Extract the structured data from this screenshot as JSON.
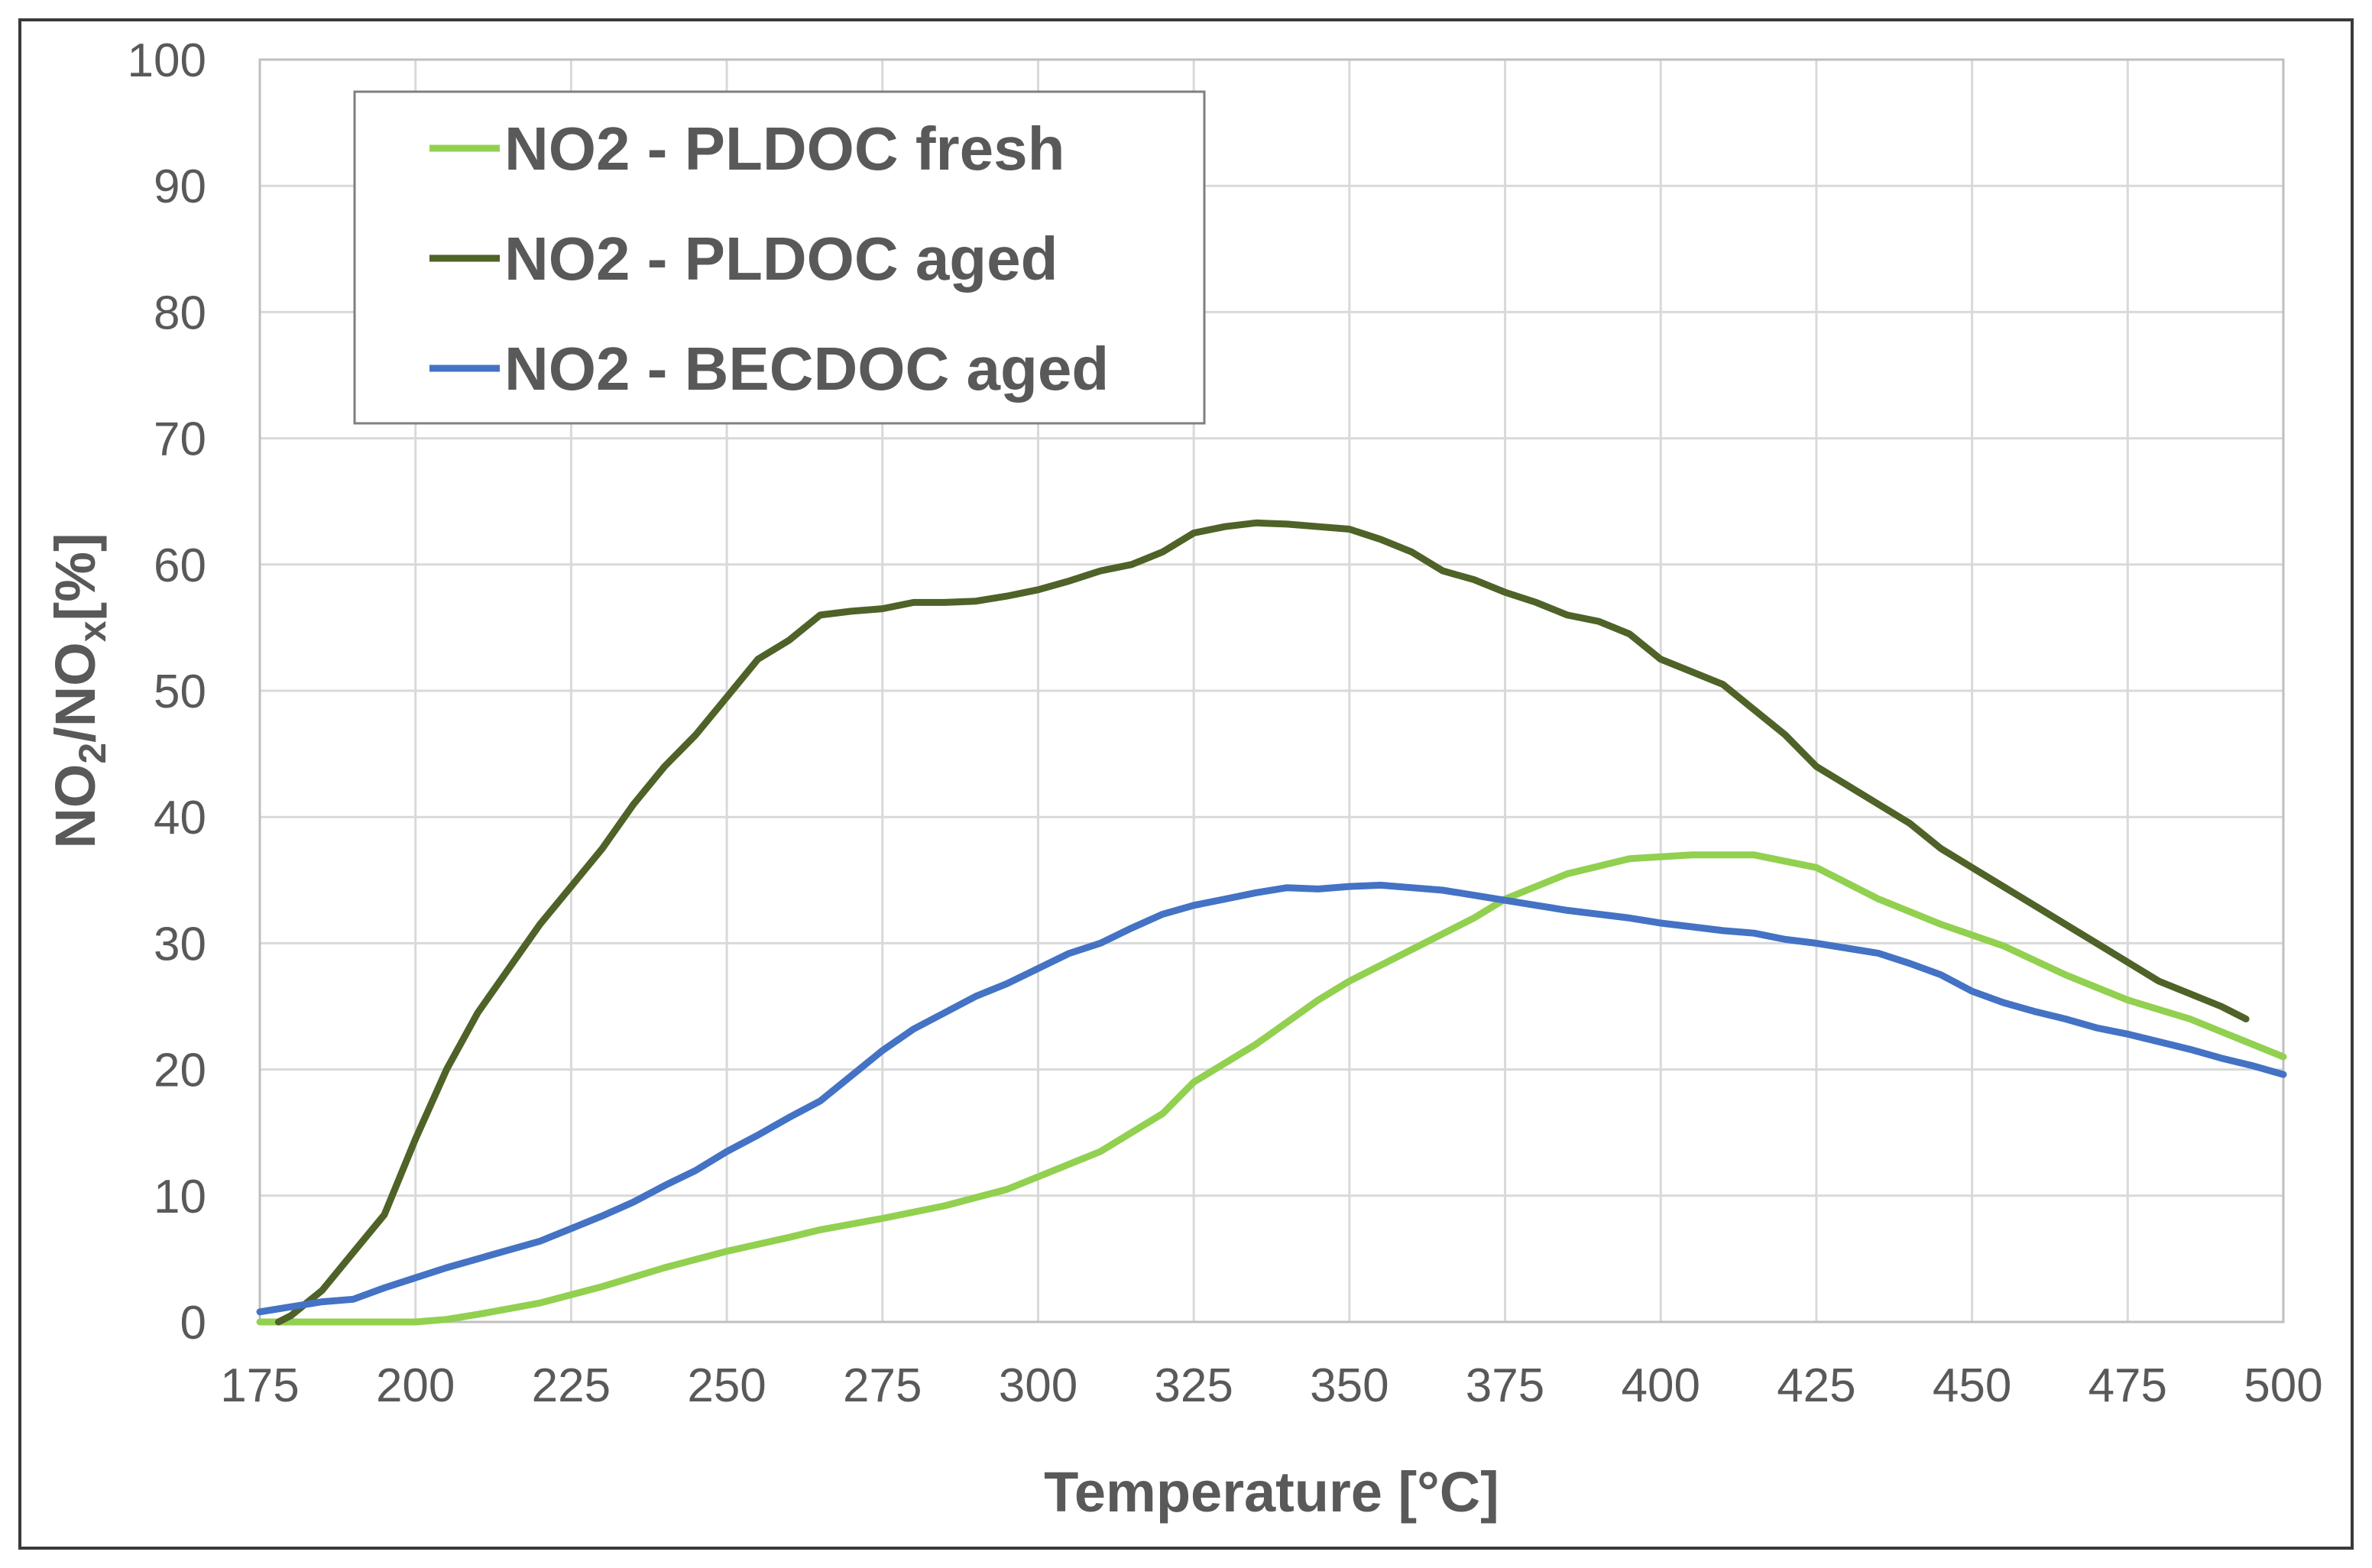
{
  "chart_data": {
    "type": "line",
    "title": "",
    "xlabel": "Temperature [°C]",
    "ylabel_parts": [
      "NO",
      "2",
      "/NO",
      "x",
      "[%]"
    ],
    "xlim": [
      175,
      500
    ],
    "ylim": [
      0,
      100
    ],
    "xticks": [
      175,
      200,
      225,
      250,
      275,
      300,
      325,
      350,
      375,
      400,
      425,
      450,
      475,
      500
    ],
    "yticks": [
      0,
      10,
      20,
      30,
      40,
      50,
      60,
      70,
      80,
      90,
      100
    ],
    "grid": true,
    "legend_position": "top-left",
    "series": [
      {
        "name": "NO2 - PLDOC fresh",
        "color": "#92D050",
        "x": [
          175,
          190,
          200,
          205,
          210,
          220,
          230,
          240,
          250,
          260,
          265,
          275,
          285,
          295,
          300,
          310,
          320,
          325,
          335,
          345,
          350,
          360,
          370,
          375,
          385,
          395,
          405,
          415,
          425,
          435,
          445,
          455,
          465,
          475,
          485,
          495,
          500
        ],
        "y": [
          0,
          0,
          0,
          0.2,
          0.6,
          1.5,
          2.8,
          4.3,
          5.6,
          6.7,
          7.3,
          8.2,
          9.2,
          10.5,
          11.5,
          13.5,
          16.5,
          19,
          22,
          25.5,
          27,
          29.5,
          32,
          33.5,
          35.5,
          36.7,
          37,
          37,
          36,
          33.5,
          31.5,
          29.8,
          27.5,
          25.5,
          24,
          22,
          21
        ]
      },
      {
        "name": "NO2 - PLDOC aged",
        "color": "#4F6228",
        "x": [
          178,
          180,
          185,
          190,
          195,
          200,
          205,
          210,
          215,
          220,
          225,
          230,
          235,
          240,
          245,
          250,
          255,
          260,
          265,
          270,
          275,
          280,
          285,
          290,
          295,
          300,
          305,
          310,
          315,
          320,
          325,
          330,
          335,
          340,
          345,
          350,
          355,
          360,
          365,
          370,
          375,
          380,
          385,
          390,
          395,
          400,
          405,
          410,
          415,
          420,
          425,
          430,
          435,
          440,
          445,
          450,
          455,
          460,
          465,
          470,
          475,
          480,
          485,
          490,
          494
        ],
        "y": [
          0,
          0.5,
          2.5,
          5.5,
          8.5,
          14.5,
          20,
          24.5,
          28,
          31.5,
          34.5,
          37.5,
          41,
          44,
          46.5,
          49.5,
          52.5,
          54,
          56,
          56.3,
          56.5,
          57,
          57,
          57.1,
          57.5,
          58,
          58.7,
          59.5,
          60,
          61,
          62.5,
          63,
          63.3,
          63.2,
          63,
          62.8,
          62,
          61,
          59.5,
          58.8,
          57.8,
          57,
          56,
          55.5,
          54.5,
          52.5,
          51.5,
          50.5,
          48.5,
          46.5,
          44,
          42.5,
          41,
          39.5,
          37.5,
          36,
          34.5,
          33,
          31.5,
          30,
          28.5,
          27,
          26,
          25,
          24
        ]
      },
      {
        "name": "NO2 - BECDOC aged",
        "color": "#4472C4",
        "x": [
          175,
          180,
          185,
          190,
          195,
          200,
          205,
          210,
          215,
          220,
          225,
          230,
          235,
          240,
          245,
          250,
          255,
          260,
          265,
          270,
          275,
          280,
          285,
          290,
          295,
          300,
          305,
          310,
          315,
          320,
          325,
          330,
          335,
          340,
          345,
          350,
          355,
          360,
          365,
          370,
          375,
          380,
          385,
          390,
          395,
          400,
          405,
          410,
          415,
          420,
          425,
          430,
          435,
          440,
          445,
          450,
          455,
          460,
          465,
          470,
          475,
          480,
          485,
          490,
          495,
          500
        ],
        "y": [
          0.8,
          1.2,
          1.6,
          1.8,
          2.7,
          3.5,
          4.3,
          5.0,
          5.7,
          6.4,
          7.4,
          8.4,
          9.5,
          10.8,
          12.0,
          13.5,
          14.8,
          16.2,
          17.5,
          19.5,
          21.5,
          23.2,
          24.5,
          25.8,
          26.8,
          28.0,
          29.2,
          30.0,
          31.2,
          32.3,
          33.0,
          33.5,
          34.0,
          34.4,
          34.3,
          34.5,
          34.6,
          34.4,
          34.2,
          33.8,
          33.4,
          33.0,
          32.6,
          32.3,
          32.0,
          31.6,
          31.3,
          31.0,
          30.8,
          30.3,
          30.0,
          29.6,
          29.2,
          28.4,
          27.5,
          26.2,
          25.3,
          24.6,
          24.0,
          23.3,
          22.8,
          22.2,
          21.6,
          20.9,
          20.3,
          19.6
        ]
      }
    ]
  }
}
